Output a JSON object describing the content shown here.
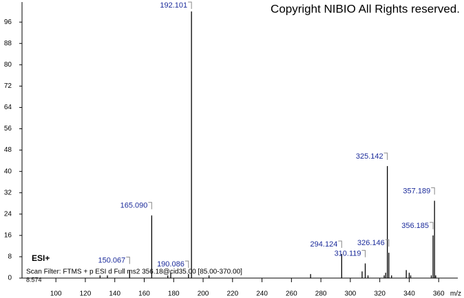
{
  "chart_data": {
    "type": "stick",
    "title": "Copyright NIBIO All Rights reserved.",
    "annotations": [
      "ESI+",
      "Scan Filter: FTMS + p ESI d Full ms2 356.18@cid35.00 [85.00-370.00]",
      "8.574"
    ],
    "x_label": "m/z",
    "x": [
      130,
      135,
      150.067,
      165.09,
      176,
      178,
      190.086,
      192.101,
      204,
      273,
      294.124,
      308,
      310.119,
      312,
      323,
      324,
      325.142,
      326.146,
      328,
      338,
      340,
      341,
      355,
      356.185,
      357.189,
      358
    ],
    "values": [
      1,
      1,
      3,
      23.5,
      1,
      2,
      1.5,
      100,
      1,
      1.5,
      9,
      2.5,
      5.5,
      1,
      1,
      2,
      42,
      9.5,
      1,
      3,
      2,
      1,
      1,
      16,
      29,
      1
    ],
    "peak_labels": [
      null,
      null,
      "150.067",
      "165.090",
      null,
      null,
      "190.086",
      "192.101",
      null,
      null,
      "294.124",
      null,
      "310.119",
      null,
      null,
      null,
      "325.142",
      "326.146",
      null,
      null,
      null,
      null,
      null,
      "356.185",
      "357.189",
      null
    ],
    "color": "#000000",
    "label_color": "#1a2a9a",
    "xlim": [
      77,
      373
    ],
    "xticks": [
      100,
      120,
      140,
      160,
      180,
      200,
      220,
      240,
      260,
      280,
      300,
      320,
      340,
      360
    ],
    "ylim": [
      0,
      103
    ],
    "yticks": [
      0,
      8,
      16,
      24,
      32,
      40,
      48,
      56,
      64,
      72,
      80,
      88,
      96
    ]
  }
}
